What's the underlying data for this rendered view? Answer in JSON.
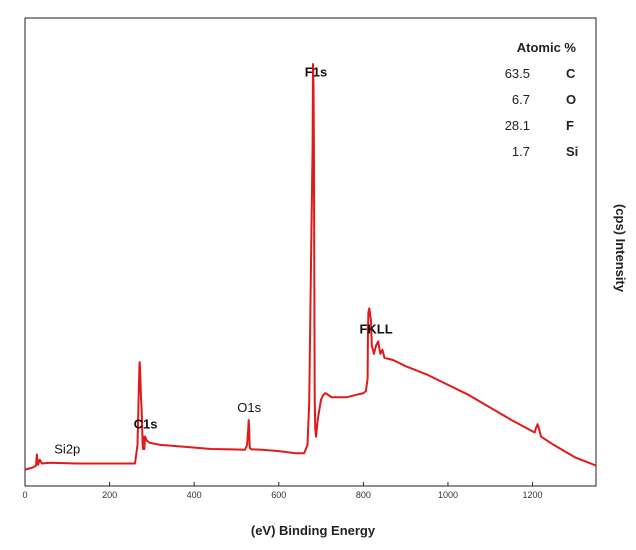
{
  "chart_data": {
    "type": "line",
    "orientation": "mirrored",
    "title": "",
    "xlabel": "(eV) Binding Energy",
    "ylabel": "(cps) Intensity",
    "xlim": [
      0,
      1350
    ],
    "ylim": [
      0,
      100
    ],
    "x_ticks": [
      0,
      200,
      400,
      600,
      800,
      1000,
      1200
    ],
    "x_tick_labels": [
      "0",
      "200",
      "400",
      "600",
      "800",
      "1000",
      "1200"
    ],
    "grid": false,
    "series": [
      {
        "color": "#e11919",
        "x": [
          0,
          10,
          20,
          26,
          28,
          31,
          35,
          40,
          60,
          90,
          120,
          150,
          200,
          230,
          260,
          266,
          270,
          271,
          272,
          274,
          276,
          278,
          279,
          280,
          281,
          282,
          284,
          288,
          295,
          320,
          380,
          440,
          490,
          520,
          525,
          528,
          529,
          530,
          531,
          532,
          534,
          536,
          540,
          560,
          600,
          640,
          660,
          668,
          672,
          676,
          680,
          681,
          682,
          683,
          684,
          685,
          686,
          688,
          692,
          695,
          700,
          705,
          710,
          718,
          725,
          740,
          760,
          780,
          800,
          806,
          810,
          811,
          812,
          814,
          818,
          820,
          825,
          830,
          835,
          840,
          845,
          850,
          870,
          900,
          950,
          1000,
          1050,
          1100,
          1150,
          1205,
          1208,
          1212,
          1215,
          1220,
          1250,
          1300,
          1350
        ],
        "values": [
          2,
          2.3,
          2.6,
          3,
          5.7,
          3.2,
          4.4,
          3.5,
          3.7,
          3.6,
          3.5,
          3.5,
          3.5,
          3.5,
          3.5,
          8,
          25,
          28,
          27,
          20,
          16,
          8,
          7,
          10,
          7,
          7,
          10,
          9,
          8.5,
          8,
          7.5,
          7,
          6.9,
          6.8,
          8,
          12,
          14,
          12,
          8,
          7.2,
          7,
          6.9,
          6.9,
          6.8,
          6.5,
          6,
          6,
          8,
          18,
          50,
          80,
          100,
          95,
          80,
          50,
          20,
          12,
          10,
          14,
          16,
          19,
          20,
          20.5,
          20,
          19.5,
          19.5,
          19.5,
          20,
          20.5,
          21,
          24,
          36,
          40,
          41,
          38,
          32,
          30,
          32,
          33,
          30,
          31,
          29,
          28.5,
          27,
          25,
          22.5,
          20,
          17,
          14,
          11,
          12,
          13,
          12,
          10,
          8,
          5,
          3
        ]
      }
    ],
    "annotations": [
      {
        "text": "Si2p",
        "x": 100
      },
      {
        "text": "C1s",
        "x": 285
      },
      {
        "text": "O1s",
        "x": 530
      },
      {
        "text": "F1s",
        "x": 688
      },
      {
        "text": "FKLL",
        "x": 830
      }
    ],
    "composition": {
      "header": "Atomic %",
      "rows": [
        {
          "element": "C",
          "value": "63.5"
        },
        {
          "element": "O",
          "value": "6.7"
        },
        {
          "element": "F",
          "value": "28.1"
        },
        {
          "element": "Si",
          "value": "1.7"
        }
      ]
    }
  }
}
